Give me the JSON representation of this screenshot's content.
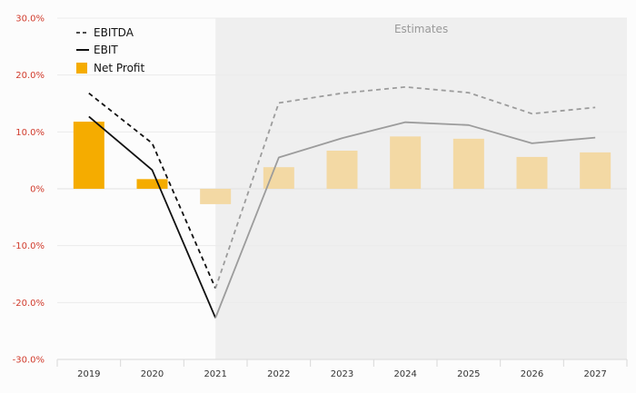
{
  "chart_data": {
    "type": "line",
    "categories": [
      "2019",
      "2020",
      "2021",
      "2022",
      "2023",
      "2024",
      "2025",
      "2026",
      "2027"
    ],
    "ylim": [
      -30,
      30
    ],
    "yticks": [
      30,
      20,
      10,
      0,
      -10,
      -20,
      -30
    ],
    "ytick_labels": [
      "30.0%",
      "20.0%",
      "10.0%",
      "0%",
      "-10.0%",
      "-20.0%",
      "-30.0%"
    ],
    "estimates_label": "Estimates",
    "estimates_start": "2021",
    "grid": true,
    "legend_position": "top-left",
    "series": [
      {
        "name": "EBITDA",
        "type": "line",
        "style": "dashed",
        "values": [
          16.8,
          8.0,
          -17.5,
          15.1,
          16.8,
          17.9,
          16.9,
          13.2,
          14.3
        ]
      },
      {
        "name": "EBIT",
        "type": "line",
        "style": "solid",
        "values": [
          12.7,
          3.3,
          -22.7,
          5.5,
          8.9,
          11.7,
          11.2,
          8.0,
          9.0
        ]
      },
      {
        "name": "Net Profit",
        "type": "bar",
        "values": [
          11.8,
          1.7,
          -2.7,
          3.8,
          6.7,
          9.2,
          8.8,
          5.6,
          6.4
        ]
      }
    ],
    "colors": {
      "bar_actual": "#f5ac00",
      "bar_estimate": "#f3d9a4",
      "line_actual": "#111111",
      "line_estimate": "#9c9c9c",
      "shade": "#efefef",
      "ytick_text": "#d13c2d"
    }
  }
}
